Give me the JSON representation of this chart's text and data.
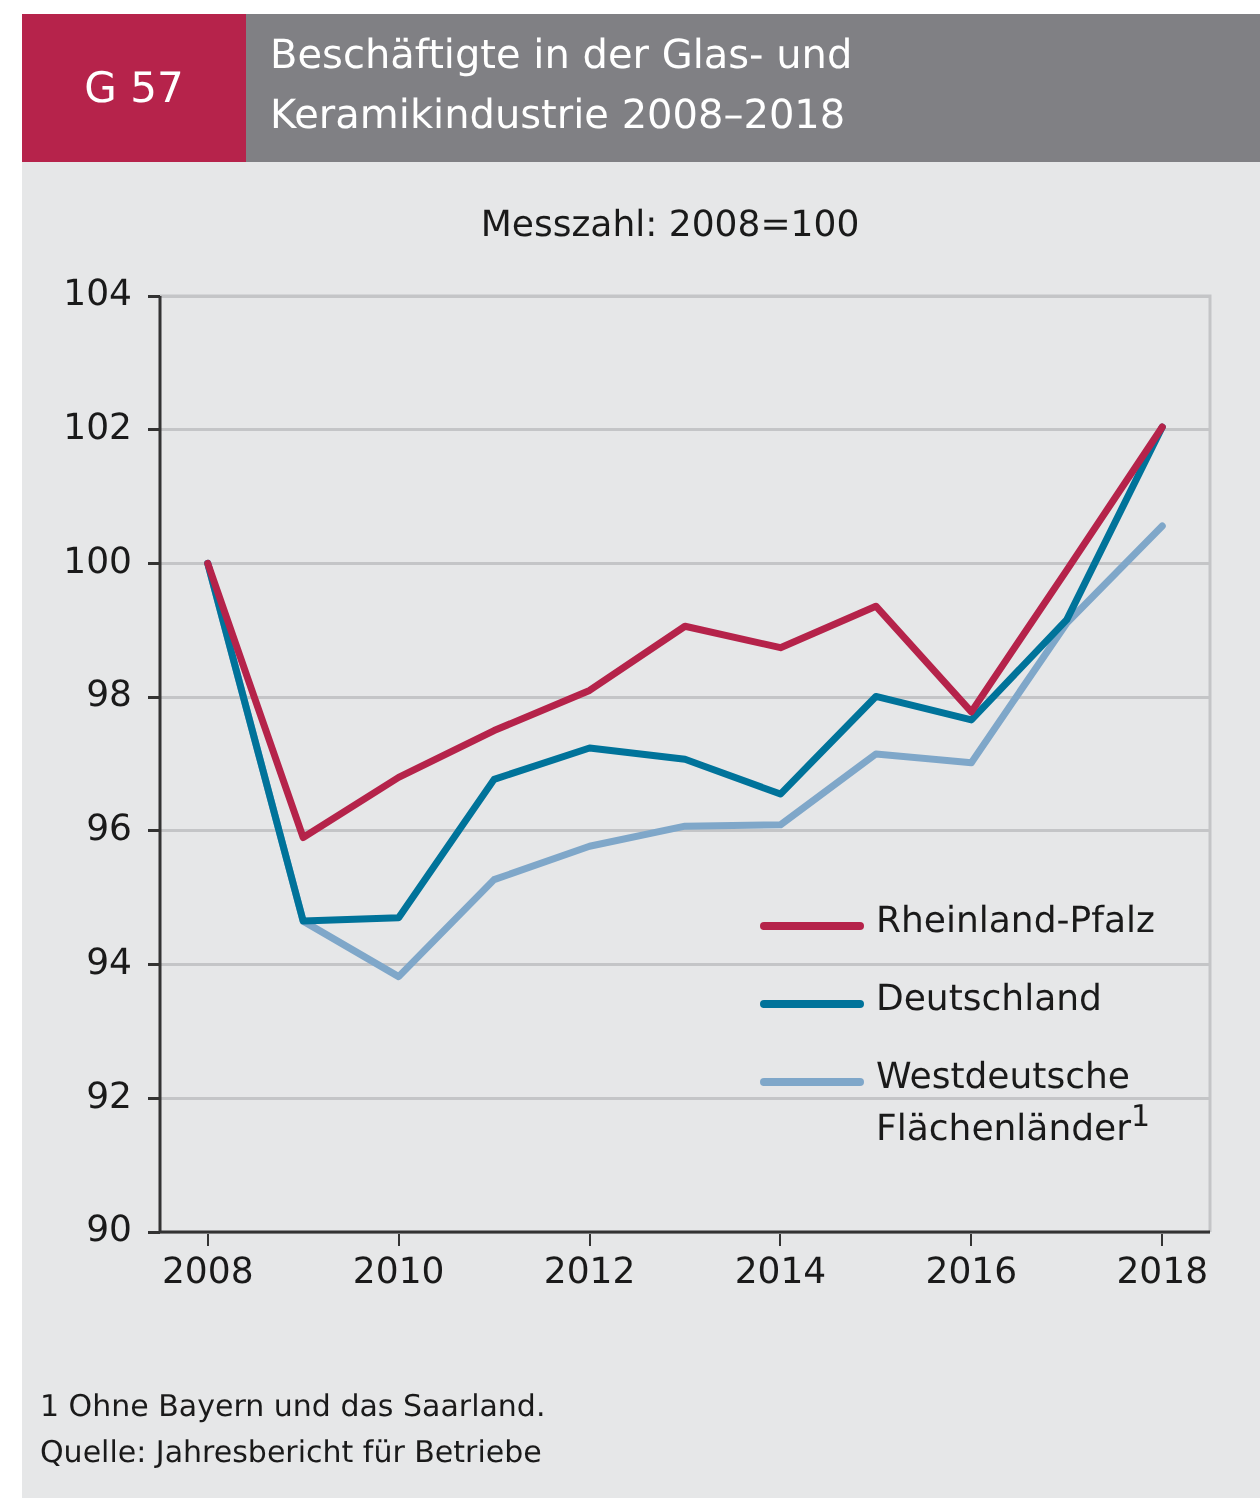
{
  "chart_data": {
    "type": "line",
    "title": "Beschäftigte in der Glas- und Keramikindustrie 2008–2018",
    "subtitle": "Messzahl: 2008=100",
    "annotations": [
      "G 57",
      "1 Ohne Bayern und das Saarland.",
      "Quelle: Jahresbericht für Betriebe"
    ],
    "x": [
      2008,
      2009,
      2010,
      2011,
      2012,
      2013,
      2014,
      2015,
      2016,
      2017,
      2018
    ],
    "series": [
      {
        "name": "Rheinland-Pfalz",
        "color": "#b5234a",
        "values": [
          100,
          95.9,
          96.8,
          97.5,
          98.1,
          99.06,
          98.74,
          99.36,
          97.78,
          99.9,
          102.04
        ]
      },
      {
        "name": "Deutschland",
        "color": "#00739a",
        "values": [
          100,
          94.65,
          94.7,
          96.77,
          97.24,
          97.07,
          96.55,
          98.01,
          97.66,
          99.16,
          102.04
        ]
      },
      {
        "name": "Westdeutsche Flächenländer$^{1}$",
        "color": "#7fa7c9",
        "values": [
          100,
          94.65,
          93.82,
          95.27,
          95.77,
          96.07,
          96.09,
          97.15,
          97.02,
          99.11,
          100.56
        ]
      }
    ],
    "xlim": [
      2007.5,
      2018.5
    ],
    "xticks": [
      2008,
      2010,
      2012,
      2014,
      2016,
      2018
    ],
    "ylim": [
      90,
      104
    ],
    "yticks": [
      90,
      92,
      94,
      96,
      98,
      100,
      102,
      104
    ],
    "grid": "y",
    "legend": "bottom right",
    "marker": "none",
    "line_style": "solid"
  }
}
